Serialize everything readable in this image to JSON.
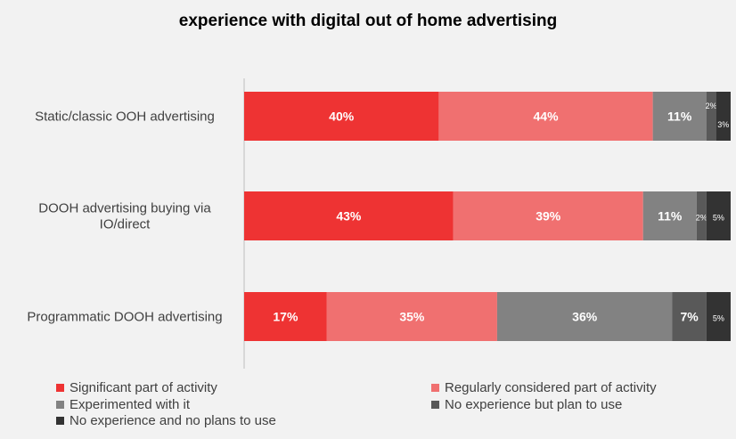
{
  "chart_data": {
    "type": "bar",
    "orientation": "horizontal",
    "stacked": true,
    "title": "experience with digital out of home advertising",
    "categories": [
      "Static/classic OOH advertising",
      "DOOH advertising buying via IO/direct",
      "Programmatic DOOH advertising"
    ],
    "series": [
      {
        "name": "Significant part of activity",
        "values": [
          40,
          43,
          17
        ],
        "labels": [
          "40%",
          "43%",
          "17%"
        ],
        "color": "#ee3333"
      },
      {
        "name": "Regularly considered part of activity",
        "values": [
          44,
          39,
          35
        ],
        "labels": [
          "44%",
          "39%",
          "35%"
        ],
        "color": "#f07070"
      },
      {
        "name": "Experimented with it",
        "values": [
          11,
          11,
          36
        ],
        "labels": [
          "11%",
          "11%",
          "36%"
        ],
        "color": "#828282"
      },
      {
        "name": "No experience but plan to use",
        "values": [
          2,
          2,
          7
        ],
        "labels": [
          "2%",
          "2%",
          "7%"
        ],
        "color": "#595959"
      },
      {
        "name": "No experience and no plans to use",
        "values": [
          3,
          5,
          5
        ],
        "labels": [
          "3%",
          "5%",
          "5%"
        ],
        "color": "#333333"
      }
    ],
    "legend_position": "bottom",
    "grid": false
  }
}
